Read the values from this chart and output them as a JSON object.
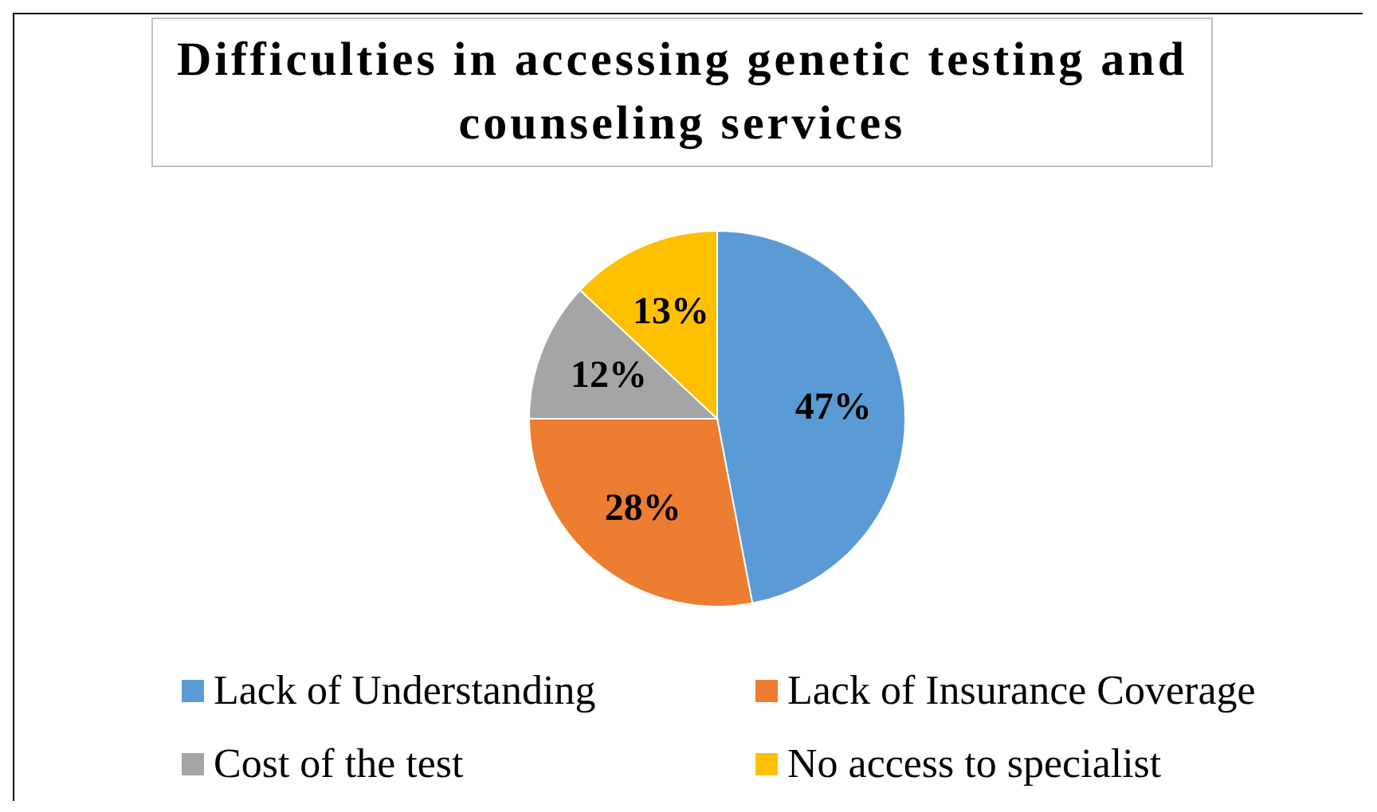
{
  "chart_data": {
    "type": "pie",
    "title": "Difficulties in accessing genetic testing and counseling services",
    "categories": [
      "Lack of Understanding",
      "Lack of Insurance Coverage",
      "Cost of the test",
      "No access to specialist"
    ],
    "values": [
      47,
      28,
      12,
      13
    ],
    "colors": [
      "#5b9bd5",
      "#ed7d31",
      "#a5a5a5",
      "#ffc000"
    ],
    "value_labels": [
      "47%",
      "28%",
      "12%",
      "13%"
    ],
    "legend": "bottom"
  }
}
